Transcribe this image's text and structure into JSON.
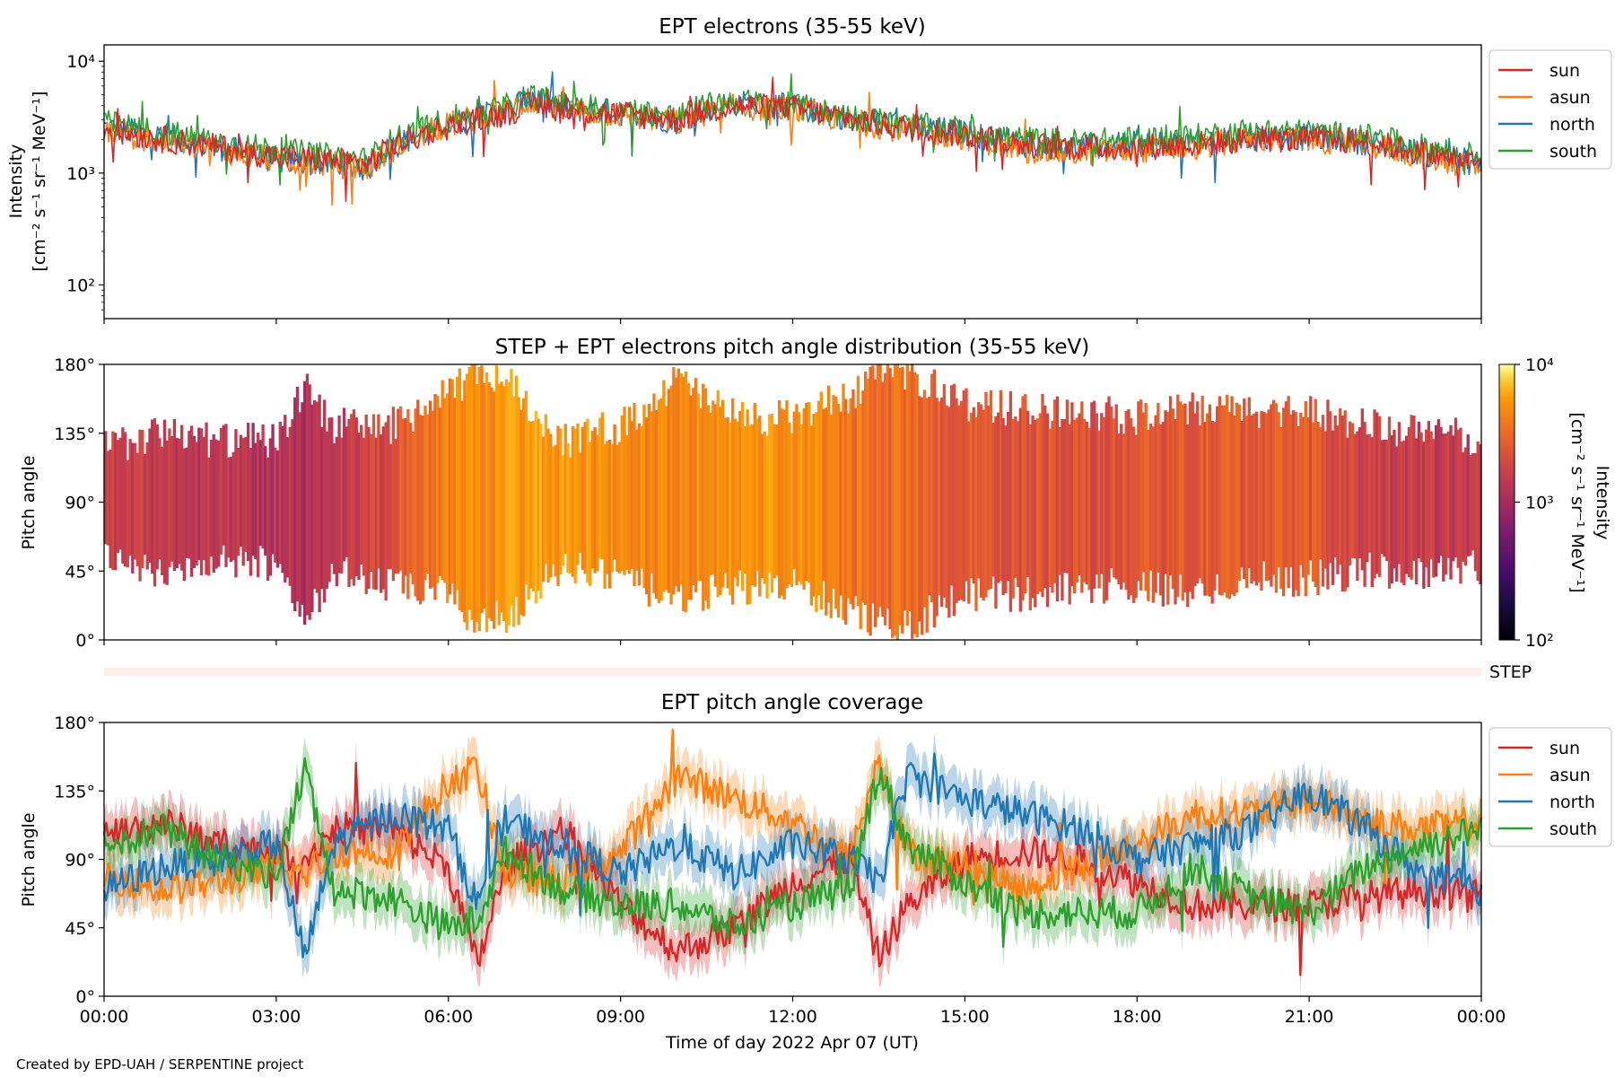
{
  "footer": {
    "credit": "Created by EPD-UAH / SERPENTINE project"
  },
  "colors": {
    "sun": "#d62728",
    "asun": "#ff7f0e",
    "north": "#1f77b4",
    "south": "#2ca02c",
    "step_bar": "#fdeee9"
  },
  "chart_data": [
    {
      "type": "line",
      "title": "EPT electrons (35-55 keV)",
      "ylabel_line1": "Intensity",
      "ylabel_line2": "[cm⁻² s⁻¹ sr⁻¹ MeV⁻¹]",
      "yscale": "log",
      "ylim": [
        50,
        14000
      ],
      "yticks": [
        {
          "v": 100,
          "label": "10²"
        },
        {
          "v": 1000,
          "label": "10³"
        },
        {
          "v": 10000,
          "label": "10⁴"
        }
      ],
      "xlim_hours": [
        0,
        24
      ],
      "x_tick_hours": [
        0,
        3,
        6,
        9,
        12,
        15,
        18,
        21,
        24
      ],
      "x_hours": [
        0,
        1,
        2,
        3,
        4,
        4.6,
        5,
        6,
        7,
        7.5,
        8,
        9,
        10,
        10.5,
        11,
        12,
        13,
        14,
        15,
        16,
        17,
        18,
        19,
        20,
        21,
        22,
        23,
        24
      ],
      "legend": {
        "placement": "right",
        "entries": [
          "sun",
          "asun",
          "north",
          "south"
        ]
      },
      "series": [
        {
          "name": "sun",
          "color": "#d62728",
          "values": [
            2500,
            2000,
            1700,
            1400,
            1300,
            1200,
            1700,
            2600,
            3400,
            4200,
            3600,
            3400,
            3000,
            3600,
            4000,
            3800,
            3000,
            2500,
            2200,
            1800,
            1700,
            1700,
            1800,
            2000,
            2000,
            1900,
            1500,
            1200
          ]
        },
        {
          "name": "asun",
          "color": "#ff7f0e",
          "values": [
            2400,
            1900,
            1600,
            1300,
            1200,
            1100,
            1600,
            2700,
            3600,
            4400,
            3700,
            3300,
            2800,
            3500,
            3900,
            3700,
            2900,
            2400,
            2100,
            1600,
            1500,
            1600,
            1700,
            2000,
            2000,
            1800,
            1400,
            1100
          ]
        },
        {
          "name": "north",
          "color": "#1f77b4",
          "values": [
            2600,
            2100,
            1700,
            1300,
            1200,
            1100,
            1700,
            2700,
            3600,
            5000,
            3800,
            3500,
            2900,
            3800,
            4200,
            3900,
            3100,
            2600,
            2300,
            1800,
            1700,
            1800,
            1900,
            2100,
            2100,
            1900,
            1500,
            1200
          ]
        },
        {
          "name": "south",
          "color": "#2ca02c",
          "values": [
            2800,
            2300,
            1900,
            1600,
            1400,
            1300,
            1900,
            3000,
            3900,
            4800,
            4100,
            3700,
            3200,
            4000,
            4400,
            4000,
            3200,
            2700,
            2400,
            2000,
            1900,
            2000,
            2100,
            2400,
            2300,
            2100,
            1700,
            1400
          ]
        }
      ]
    },
    {
      "type": "heatmap",
      "title": "STEP + EPT electrons pitch angle distribution (35-55 keV)",
      "ylabel": "Pitch angle",
      "ylim": [
        0,
        180
      ],
      "yticks": [
        "0°",
        "45°",
        "90°",
        "135°",
        "180°"
      ],
      "colorbar": {
        "label_line1": "Intensity",
        "label_line2": "[cm⁻² s⁻¹ sr⁻¹ MeV⁻¹]",
        "scale": "log",
        "range": [
          100,
          10000
        ],
        "ticks": [
          "10²",
          "10³",
          "10⁴"
        ],
        "colormap": "inferno"
      },
      "coverage_hours": [
        0,
        1,
        2,
        3,
        3.5,
        4,
        5,
        6,
        6.5,
        7,
        7.5,
        8,
        9,
        10,
        11,
        12,
        13,
        13.5,
        14,
        15,
        16,
        17,
        18,
        19,
        20,
        21,
        22,
        23,
        24
      ],
      "pitch_min_deg": [
        55,
        45,
        50,
        50,
        15,
        45,
        35,
        30,
        10,
        15,
        30,
        50,
        40,
        25,
        35,
        35,
        20,
        10,
        10,
        30,
        30,
        35,
        35,
        30,
        40,
        40,
        45,
        45,
        48
      ],
      "pitch_max_deg": [
        125,
        135,
        130,
        130,
        165,
        140,
        140,
        160,
        175,
        170,
        150,
        130,
        140,
        170,
        145,
        145,
        160,
        175,
        175,
        155,
        150,
        150,
        145,
        150,
        150,
        150,
        140,
        135,
        132
      ],
      "band_intensity": [
        1200,
        1100,
        1000,
        900,
        900,
        900,
        1500,
        2800,
        3000,
        3400,
        3800,
        3600,
        3000,
        2800,
        3200,
        3300,
        2400,
        2200,
        2100,
        1700,
        1600,
        1600,
        1700,
        1700,
        1800,
        1700,
        1200,
        1100,
        1100
      ]
    },
    {
      "type": "bar",
      "label": "STEP"
    },
    {
      "type": "line",
      "title": "EPT pitch angle coverage",
      "ylabel": "Pitch angle",
      "xlabel": "Time of day 2022 Apr 07 (UT)",
      "ylim": [
        0,
        180
      ],
      "yticks": [
        "0°",
        "45°",
        "90°",
        "135°",
        "180°"
      ],
      "xlim_hours": [
        0,
        24
      ],
      "x_tick_labels": [
        "00:00",
        "03:00",
        "06:00",
        "09:00",
        "12:00",
        "15:00",
        "18:00",
        "21:00",
        "00:00"
      ],
      "x_hours": [
        0,
        1,
        2,
        3,
        3.5,
        4,
        5,
        6,
        6.5,
        7,
        8,
        9,
        10,
        11,
        12,
        13,
        13.5,
        14,
        15,
        16,
        17,
        18,
        19,
        20,
        21,
        22,
        23,
        24
      ],
      "legend": {
        "placement": "right",
        "entries": [
          "sun",
          "asun",
          "north",
          "south"
        ]
      },
      "series": [
        {
          "name": "sun",
          "color": "#d62728",
          "values": [
            105,
            115,
            100,
            95,
            90,
            110,
            110,
            85,
            20,
            85,
            110,
            60,
            30,
            45,
            75,
            90,
            25,
            60,
            90,
            95,
            90,
            75,
            60,
            60,
            60,
            65,
            70,
            65
          ]
        },
        {
          "name": "asun",
          "color": "#ff7f0e",
          "values": [
            80,
            70,
            75,
            85,
            80,
            95,
            95,
            140,
            150,
            80,
            75,
            95,
            145,
            130,
            115,
            90,
            155,
            95,
            85,
            70,
            85,
            100,
            120,
            120,
            130,
            115,
            110,
            115
          ]
        },
        {
          "name": "north",
          "color": "#1f77b4",
          "values": [
            70,
            85,
            90,
            100,
            25,
            100,
            120,
            110,
            60,
            115,
            100,
            80,
            100,
            80,
            100,
            90,
            75,
            145,
            130,
            120,
            110,
            90,
            100,
            110,
            135,
            110,
            80,
            70
          ]
        },
        {
          "name": "south",
          "color": "#2ca02c",
          "values": [
            100,
            110,
            90,
            80,
            150,
            70,
            65,
            45,
            50,
            95,
            70,
            60,
            60,
            45,
            60,
            70,
            150,
            100,
            75,
            55,
            55,
            55,
            85,
            65,
            55,
            85,
            100,
            110
          ]
        }
      ]
    }
  ]
}
